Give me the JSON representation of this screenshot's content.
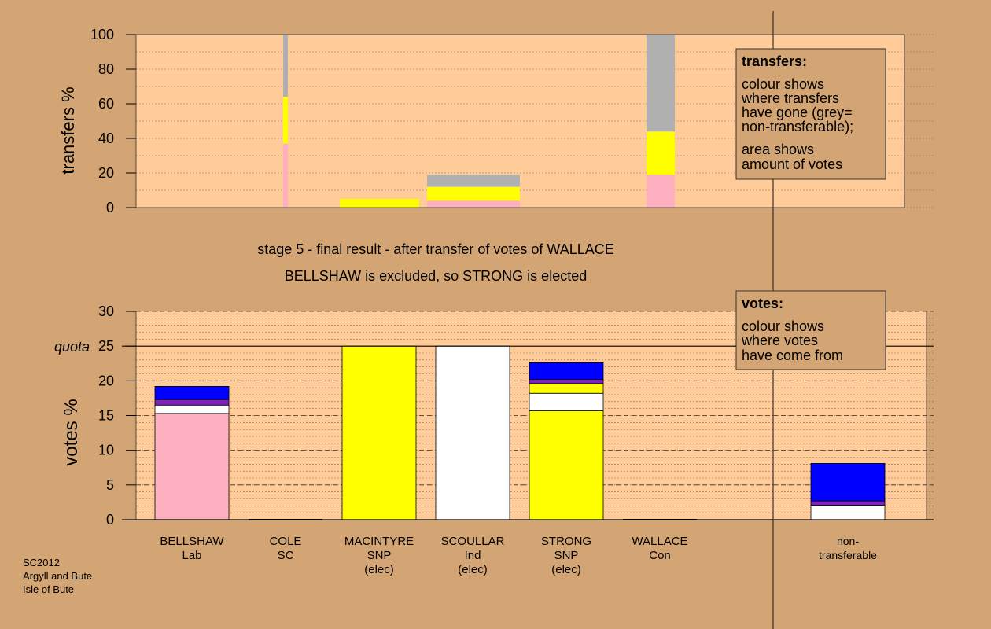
{
  "colors": {
    "background": "#d4a574",
    "plot_bg": "#ffcc99",
    "Lab": "#ffb0c0",
    "SNP": "#ffff00",
    "Ind": "#ffffff",
    "SC": "#8020c0",
    "Con": "#0000ff",
    "nontransferable": "#b0b0b0"
  },
  "headline": {
    "line1": "stage 5 - final result - after transfer of votes of WALLACE",
    "line2": "BELLSHAW is excluded, so STRONG is elected"
  },
  "footnote": [
    "SC2012",
    "Argyll and Bute",
    "Isle of Bute"
  ],
  "transfers_legend": {
    "title": "transfers:",
    "lines": [
      "colour shows",
      "where transfers",
      "have gone (grey=",
      "non-transferable);",
      "area shows",
      "amount of votes"
    ]
  },
  "votes_legend": {
    "title": "votes:",
    "lines": [
      "colour shows",
      "where votes",
      "have come from"
    ]
  },
  "chart_data": [
    {
      "type": "bar",
      "name": "transfers",
      "ylabel": "transfers %",
      "ylim": [
        0,
        100
      ],
      "yticks": [
        0,
        20,
        40,
        60,
        80,
        100
      ],
      "grid": "dotted",
      "columns": [
        {
          "label": "BELLSHAW",
          "segments": [
            {
              "color": "Lab",
              "value": 37
            },
            {
              "color": "SNP",
              "value": 27
            },
            {
              "color": "nontransferable",
              "value": 36
            }
          ]
        },
        {
          "label": "MACINTYRE",
          "segments": [
            {
              "color": "SNP",
              "value": 5
            }
          ]
        },
        {
          "label": "SCOULLAR",
          "segments": [
            {
              "color": "Lab",
              "value": 4
            },
            {
              "color": "SNP",
              "value": 8
            },
            {
              "color": "nontransferable",
              "value": 7
            }
          ]
        },
        {
          "label": "WALLACE",
          "segments": [
            {
              "color": "Lab",
              "value": 19
            },
            {
              "color": "SNP",
              "value": 25
            },
            {
              "color": "nontransferable",
              "value": 56
            }
          ]
        }
      ]
    },
    {
      "type": "bar",
      "name": "votes",
      "ylabel": "votes %",
      "ylim": [
        0,
        30
      ],
      "yticks": [
        0,
        5,
        10,
        15,
        20,
        25,
        30
      ],
      "quota": {
        "label": "quota",
        "value": 25
      },
      "grid": "dotted",
      "categories": [
        {
          "name": "BELLSHAW",
          "party": "Lab",
          "status": ""
        },
        {
          "name": "COLE",
          "party": "SC",
          "status": ""
        },
        {
          "name": "MACINTYRE",
          "party": "SNP",
          "status": "(elec)"
        },
        {
          "name": "SCOULLAR",
          "party": "Ind",
          "status": "(elec)"
        },
        {
          "name": "STRONG",
          "party": "SNP",
          "status": "(elec)"
        },
        {
          "name": "WALLACE",
          "party": "Con",
          "status": ""
        },
        {
          "name": "non-",
          "party": "transferable",
          "status": ""
        }
      ],
      "stacks": [
        [
          {
            "color": "Lab",
            "value": 15.3
          },
          {
            "color": "Ind",
            "value": 1.2
          },
          {
            "color": "SC",
            "value": 0.8
          },
          {
            "color": "Con",
            "value": 1.9
          }
        ],
        [],
        [
          {
            "color": "SNP",
            "value": 25
          }
        ],
        [
          {
            "color": "Ind",
            "value": 25
          }
        ],
        [
          {
            "color": "SNP",
            "value": 15.7
          },
          {
            "color": "Ind",
            "value": 2.5
          },
          {
            "color": "SNP",
            "value": 1.4
          },
          {
            "color": "SC",
            "value": 0.6
          },
          {
            "color": "Con",
            "value": 2.4
          }
        ],
        [],
        [
          {
            "color": "Ind",
            "value": 2.1
          },
          {
            "color": "SC",
            "value": 0.6
          },
          {
            "color": "Con",
            "value": 5.4
          }
        ]
      ]
    }
  ]
}
